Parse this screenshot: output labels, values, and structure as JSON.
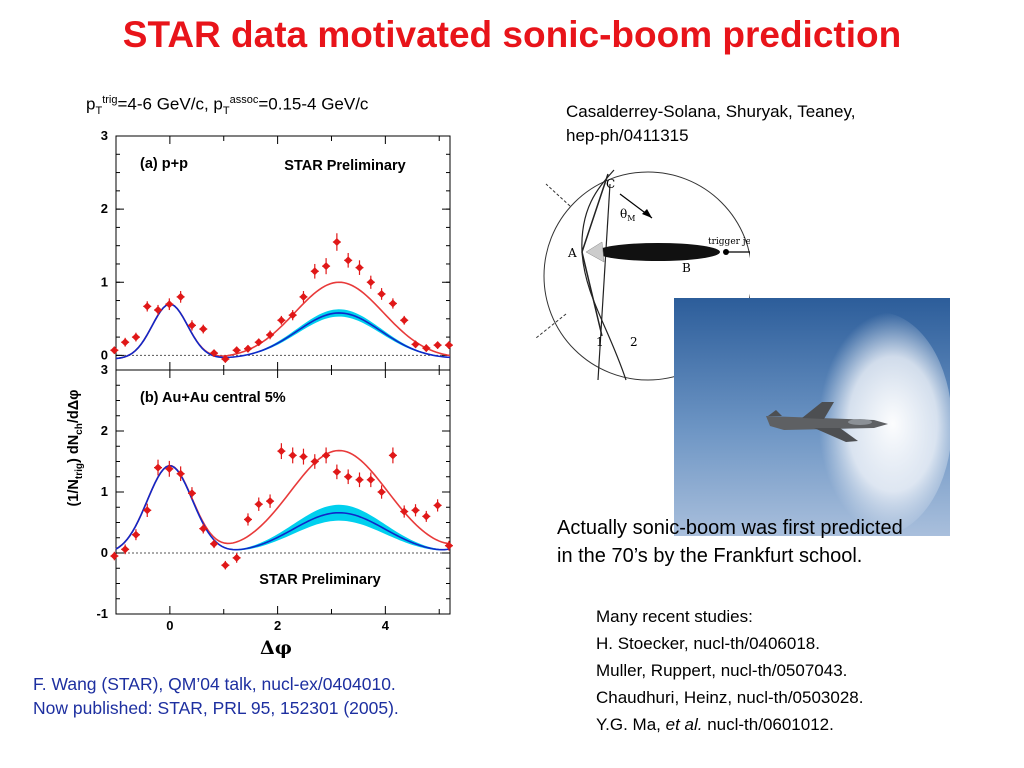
{
  "slide": {
    "title": "STAR data motivated sonic-boom prediction",
    "kinematics": {
      "p1": "p",
      "sub1": "T",
      "sup1": "trig",
      "v1": "=4-6 GeV/c, p",
      "sub2": "T",
      "sup2": "assoc",
      "v2": "=0.15-4 GeV/c"
    },
    "reference": [
      "Casalderrey-Solana, Shuryak, Teaney,",
      "hep-ph/0411315"
    ],
    "citation": [
      "F. Wang (STAR), QM’04 talk, nucl-ex/0404010.",
      "Now published: STAR, PRL 95, 152301 (2005)."
    ],
    "note": [
      "Actually sonic-boom was first predicted",
      "in the 70’s by the Frankfurt school."
    ],
    "studies": {
      "heading": "Many recent studies:",
      "lines": [
        "H. Stoecker, nucl-th/0406018.",
        "Muller, Ruppert, nucl-th/0507043.",
        "Chaudhuri, Heinz, nucl-th/0503028."
      ],
      "last_a": "Y.G. Ma, ",
      "last_em": "et al.",
      "last_b": " nucl-th/0601012."
    },
    "diagram": {
      "C": "C",
      "theta": "θ",
      "theta_sub": "M",
      "trigger": "trigger jet",
      "A": "A",
      "B": "B",
      "one": "1",
      "two": "2"
    }
  },
  "chart_data": {
    "type": "scatter",
    "xlabel": "Δφ",
    "ylabel": "(1/N",
    "ylabel_sub": "trig",
    "ylabel_b": ") dN",
    "ylabel_sub2": "ch",
    "ylabel_c": "/dΔφ",
    "xlim": [
      -1.0,
      5.2
    ],
    "x_ticks": [
      "0",
      "2",
      "4"
    ],
    "colors": {
      "points": "#e01818",
      "red_curve": "#e83a3a",
      "blue_curve": "#1028c8",
      "band": "#00d0ee"
    },
    "panels": [
      {
        "label": "(a) p+p",
        "preliminary": "STAR Preliminary",
        "ylim": [
          -0.2,
          3.0
        ],
        "y_ticks": [
          "0",
          "1",
          "2",
          "3"
        ],
        "x": [
          -1.03,
          -0.83,
          -0.63,
          -0.42,
          -0.22,
          -0.01,
          0.2,
          0.41,
          0.62,
          0.82,
          1.03,
          1.24,
          1.45,
          1.65,
          1.86,
          2.07,
          2.28,
          2.48,
          2.69,
          2.9,
          3.1,
          3.31,
          3.52,
          3.73,
          3.93,
          4.14,
          4.35,
          4.56,
          4.76,
          4.97,
          5.18
        ],
        "y": [
          0.07,
          0.18,
          0.25,
          0.67,
          0.62,
          0.7,
          0.8,
          0.41,
          0.36,
          0.03,
          -0.05,
          0.07,
          0.09,
          0.18,
          0.28,
          0.48,
          0.55,
          0.8,
          1.15,
          1.22,
          1.55,
          1.3,
          1.2,
          1.0,
          0.84,
          0.71,
          0.48,
          0.15,
          0.1,
          0.14,
          0.14
        ],
        "err": [
          0.05,
          0.06,
          0.06,
          0.07,
          0.07,
          0.08,
          0.08,
          0.07,
          0.06,
          0.05,
          0.05,
          0.05,
          0.05,
          0.05,
          0.06,
          0.06,
          0.07,
          0.08,
          0.1,
          0.11,
          0.12,
          0.1,
          0.1,
          0.09,
          0.08,
          0.07,
          0.06,
          0.05,
          0.05,
          0.05,
          0.05
        ]
      },
      {
        "label": "(b) Au+Au central 5%",
        "preliminary": "STAR Preliminary",
        "ylim": [
          -1.0,
          3.0
        ],
        "y_ticks": [
          "-1",
          "0",
          "1",
          "2",
          "3"
        ],
        "x": [
          -1.03,
          -0.83,
          -0.63,
          -0.42,
          -0.22,
          -0.01,
          0.2,
          0.41,
          0.62,
          0.82,
          1.03,
          1.24,
          1.45,
          1.65,
          1.86,
          2.07,
          2.28,
          2.48,
          2.69,
          2.9,
          3.1,
          3.31,
          3.52,
          3.73,
          3.93,
          4.14,
          4.35,
          4.56,
          4.76,
          4.97,
          5.18
        ],
        "y": [
          -0.05,
          0.06,
          0.3,
          0.7,
          1.4,
          1.38,
          1.3,
          0.98,
          0.4,
          0.15,
          -0.2,
          -0.08,
          0.55,
          0.8,
          0.85,
          1.67,
          1.6,
          1.58,
          1.5,
          1.6,
          1.33,
          1.25,
          1.2,
          1.2,
          1.0,
          1.6,
          0.68,
          0.7,
          0.6,
          0.78,
          0.12
        ],
        "err": [
          0.07,
          0.08,
          0.09,
          0.11,
          0.13,
          0.13,
          0.12,
          0.1,
          0.08,
          0.07,
          0.07,
          0.08,
          0.1,
          0.11,
          0.11,
          0.13,
          0.13,
          0.13,
          0.12,
          0.13,
          0.12,
          0.12,
          0.12,
          0.12,
          0.11,
          0.13,
          0.1,
          0.1,
          0.09,
          0.1,
          0.08
        ]
      }
    ]
  }
}
